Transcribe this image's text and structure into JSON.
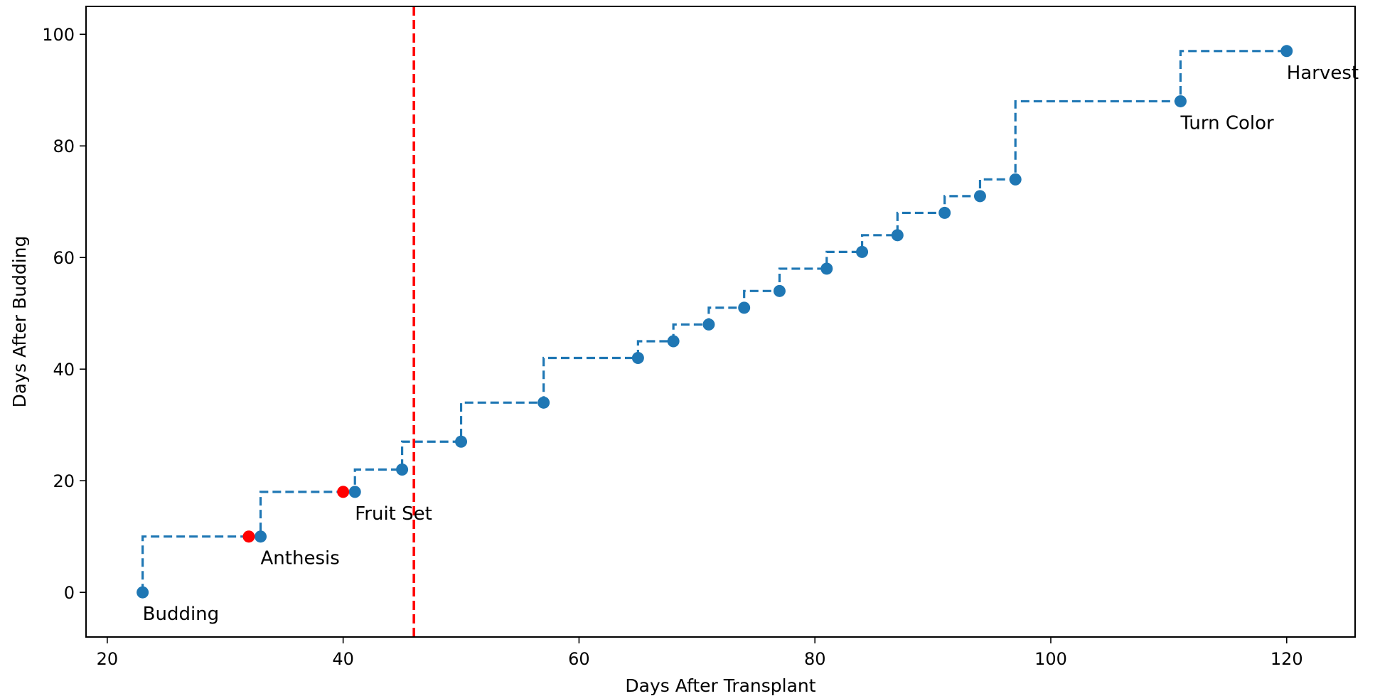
{
  "chart_data": {
    "type": "line",
    "title": "",
    "xlabel": "Days After Transplant",
    "ylabel": "Days After Budding",
    "xlim": [
      18.2,
      125.8
    ],
    "ylim": [
      -8,
      105
    ],
    "xticks": [
      20,
      40,
      60,
      80,
      100,
      120
    ],
    "yticks": [
      0,
      20,
      40,
      60,
      80,
      100
    ],
    "grid": false,
    "colors": {
      "series": "#1f77b4",
      "highlight": "#ff0000",
      "vline": "#ff0000"
    },
    "series": [
      {
        "style": "step-post dashed with markers",
        "x": [
          23,
          33,
          41,
          45,
          50,
          57,
          65,
          68,
          71,
          74,
          77,
          81,
          84,
          87,
          91,
          94,
          97,
          111,
          120
        ],
        "y": [
          0,
          10,
          18,
          22,
          27,
          34,
          42,
          45,
          48,
          51,
          54,
          58,
          61,
          64,
          68,
          71,
          74,
          88,
          97
        ]
      }
    ],
    "highlight_points": [
      {
        "x": 32,
        "y": 10
      },
      {
        "x": 40,
        "y": 18
      }
    ],
    "vertical_line": {
      "x": 46,
      "style": "dashed"
    },
    "annotations": [
      {
        "text": "Budding",
        "x": 23,
        "y": 0
      },
      {
        "text": "Anthesis",
        "x": 33,
        "y": 10
      },
      {
        "text": "Fruit Set",
        "x": 41,
        "y": 18
      },
      {
        "text": "Turn Color",
        "x": 111,
        "y": 88
      },
      {
        "text": "Harvest",
        "x": 120,
        "y": 97
      }
    ]
  }
}
